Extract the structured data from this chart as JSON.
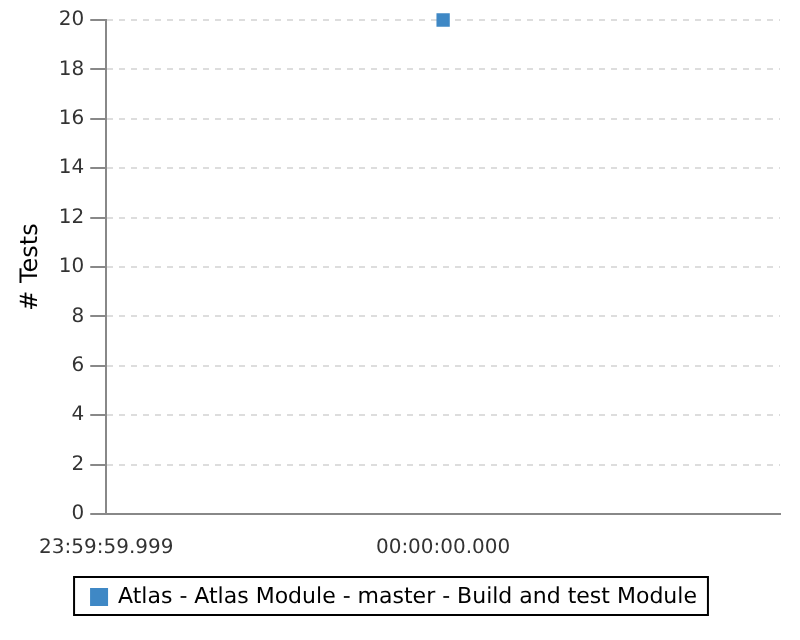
{
  "chart_data": {
    "type": "scatter",
    "ylabel": "# Tests",
    "categories": [
      "23:59:59.999",
      "00:00:00.000",
      null
    ],
    "series": [
      {
        "name": "Atlas - Atlas Module - master - Build and test Module",
        "color": "#3f88c5",
        "values": [
          null,
          20,
          null
        ]
      }
    ],
    "ylim": [
      0,
      20
    ],
    "yticks": [
      0,
      2,
      4,
      6,
      8,
      10,
      12,
      14,
      16,
      18,
      20
    ],
    "grid": "y",
    "legend": "bottom",
    "marker": "square"
  }
}
